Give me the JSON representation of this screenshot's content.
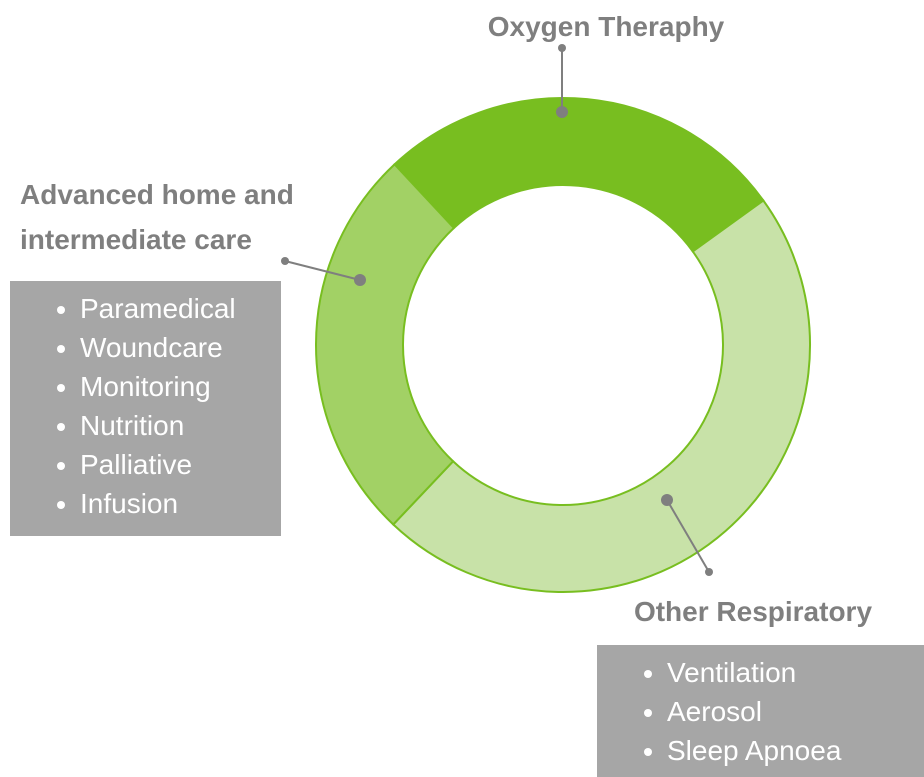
{
  "chart_data": {
    "type": "donut",
    "categories": [
      "Oxygen Theraphy",
      "Other Respiratory",
      "Advanced home and intermediate care"
    ],
    "values": [
      27,
      47,
      26
    ],
    "colors": [
      "#78be20",
      "#c8e2a8",
      "#a2d165"
    ],
    "items": [
      [],
      [
        "Ventilation",
        "Aerosol",
        "Sleep Apnoea"
      ],
      [
        "Paramedical",
        "Woundcare",
        "Monitoring",
        "Nutrition",
        "Palliative",
        "Infusion"
      ]
    ]
  }
}
